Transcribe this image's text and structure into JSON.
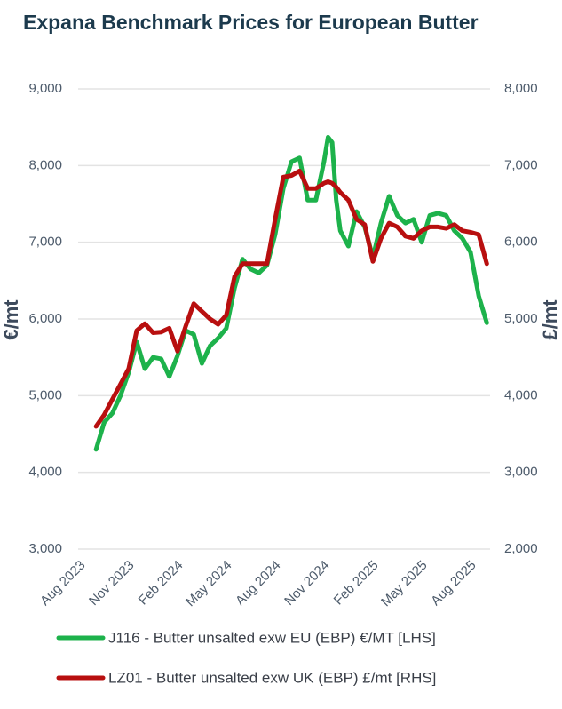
{
  "chart_data": {
    "type": "line",
    "title": "Expana Benchmark Prices for European Butter",
    "ylabel": "€/mt",
    "y2label": "£/mt",
    "x": [
      1,
      1.5,
      2,
      2.5,
      3,
      3.5,
      4,
      4.5,
      5,
      5.5,
      6,
      6.5,
      7,
      7.5,
      8,
      8.5,
      9,
      9.5,
      10,
      10.5,
      11,
      11.5,
      12,
      12.5,
      13,
      13.5,
      14,
      14.5,
      15,
      15.25,
      15.5,
      15.75,
      16,
      16.5,
      17,
      17.5,
      18,
      18.5,
      19,
      19.5,
      20,
      20.5,
      21,
      21.5,
      22,
      22.5,
      23,
      23.5,
      24,
      24.5,
      25
    ],
    "xlim": [
      -0.1,
      25.2
    ],
    "xticks": [
      {
        "value": 0,
        "label": "Aug 2023"
      },
      {
        "value": 3,
        "label": "Nov 2023"
      },
      {
        "value": 6,
        "label": "Feb 2024"
      },
      {
        "value": 9,
        "label": "May 2024"
      },
      {
        "value": 12,
        "label": "Aug 2024"
      },
      {
        "value": 15,
        "label": "Nov 2024"
      },
      {
        "value": 18,
        "label": "Feb 2025"
      },
      {
        "value": 21,
        "label": "May 2025"
      },
      {
        "value": 24,
        "label": "Aug 2025"
      }
    ],
    "ylim": [
      3000,
      9000
    ],
    "yticks": [
      {
        "value": 3000,
        "label": "3,000"
      },
      {
        "value": 4000,
        "label": "4,000"
      },
      {
        "value": 5000,
        "label": "5,000"
      },
      {
        "value": 6000,
        "label": "6,000"
      },
      {
        "value": 7000,
        "label": "7,000"
      },
      {
        "value": 8000,
        "label": "8,000"
      },
      {
        "value": 9000,
        "label": "9,000"
      }
    ],
    "y2lim": [
      2000,
      8000
    ],
    "y2ticks": [
      {
        "value": 2000,
        "label": "2,000"
      },
      {
        "value": 3000,
        "label": "3,000"
      },
      {
        "value": 4000,
        "label": "4,000"
      },
      {
        "value": 5000,
        "label": "5,000"
      },
      {
        "value": 6000,
        "label": "6,000"
      },
      {
        "value": 7000,
        "label": "7,000"
      },
      {
        "value": 8000,
        "label": "8,000"
      }
    ],
    "grid": true,
    "legend": "bottom",
    "series": [
      {
        "name": "J116 - Butter unsalted exw EU (EBP) €/MT [LHS]",
        "color": "#1db24b",
        "axis": "y",
        "values": [
          4300,
          4650,
          4770,
          5000,
          5300,
          5700,
          5350,
          5500,
          5480,
          5250,
          5520,
          5850,
          5800,
          5420,
          5650,
          5750,
          5880,
          6400,
          6780,
          6650,
          6600,
          6700,
          7100,
          7700,
          8050,
          8100,
          7550,
          7550,
          8050,
          8370,
          8300,
          7550,
          7150,
          6950,
          7400,
          7200,
          6800,
          7250,
          7600,
          7350,
          7250,
          7300,
          7000,
          7350,
          7380,
          7350,
          7150,
          7050,
          6870,
          6300,
          5950
        ]
      },
      {
        "name": "LZ01 - Butter unsalted exw UK (EBP) £/mt [RHS]",
        "color": "#b80f0f",
        "axis": "y2",
        "values": [
          3600,
          3750,
          3950,
          4150,
          4350,
          4850,
          4940,
          4820,
          4830,
          4880,
          4580,
          4900,
          5200,
          5100,
          5000,
          4930,
          5050,
          5550,
          5720,
          5720,
          5720,
          5720,
          6300,
          6850,
          6870,
          6930,
          6700,
          6700,
          6770,
          6790,
          6770,
          6720,
          6650,
          6550,
          6300,
          6230,
          5750,
          6050,
          6250,
          6200,
          6080,
          6050,
          6150,
          6200,
          6200,
          6180,
          6230,
          6150,
          6130,
          6100,
          5720
        ]
      }
    ]
  }
}
